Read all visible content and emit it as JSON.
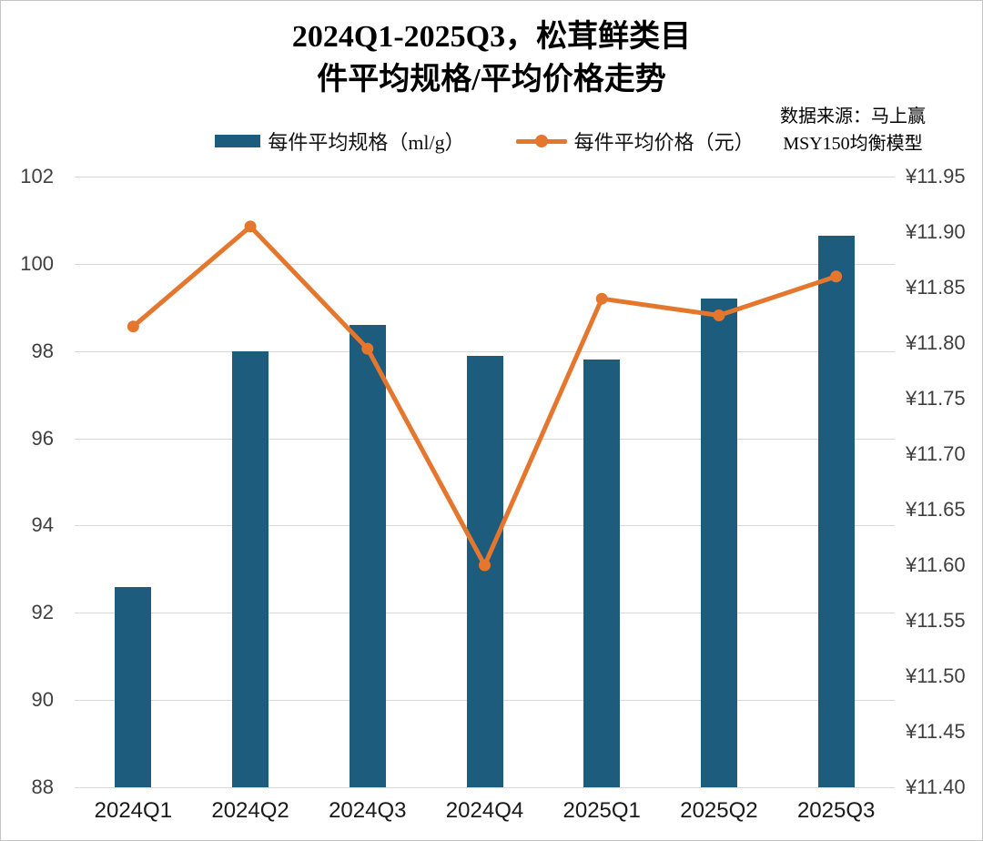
{
  "title": {
    "line1": "2024Q1-2025Q3，松茸鲜类目",
    "line2": "件平均规格/平均价格走势"
  },
  "legend": {
    "bar_label": "每件平均规格（ml/g）",
    "line_label": "每件平均价格（元）"
  },
  "source": {
    "line1": "数据来源：马上赢",
    "line2": "MSY150均衡模型"
  },
  "colors": {
    "bar": "#1d5c7c",
    "line": "#e5762d",
    "grid": "#d9d9d9",
    "axis_text": "#3f3f3f",
    "x_text": "#1a1a1a"
  },
  "chart_data": {
    "type": "bar",
    "subtype": "combo bar+line, dual axis",
    "title": "2024Q1-2025Q3，松茸鲜类目 件平均规格/平均价格走势",
    "categories": [
      "2024Q1",
      "2024Q2",
      "2024Q3",
      "2024Q4",
      "2025Q1",
      "2025Q2",
      "2025Q3"
    ],
    "series": [
      {
        "name": "每件平均规格（ml/g）",
        "type": "bar",
        "axis": "left",
        "values": [
          92.6,
          98.0,
          98.6,
          97.9,
          97.8,
          99.2,
          100.65
        ]
      },
      {
        "name": "每件平均价格（元）",
        "type": "line",
        "axis": "right",
        "values": [
          11.815,
          11.905,
          11.795,
          11.6,
          11.84,
          11.825,
          11.86
        ]
      }
    ],
    "left_axis": {
      "min": 88,
      "max": 102,
      "step": 2,
      "ticks": [
        "102",
        "100",
        "98",
        "96",
        "94",
        "92",
        "90",
        "88"
      ]
    },
    "right_axis": {
      "min": 11.4,
      "max": 11.95,
      "step": 0.05,
      "prefix": "¥",
      "ticks": [
        "¥11.95",
        "¥11.90",
        "¥11.85",
        "¥11.80",
        "¥11.75",
        "¥11.70",
        "¥11.65",
        "¥11.60",
        "¥11.55",
        "¥11.50",
        "¥11.45",
        "¥11.40"
      ]
    },
    "grid": true,
    "legend_position": "top"
  }
}
